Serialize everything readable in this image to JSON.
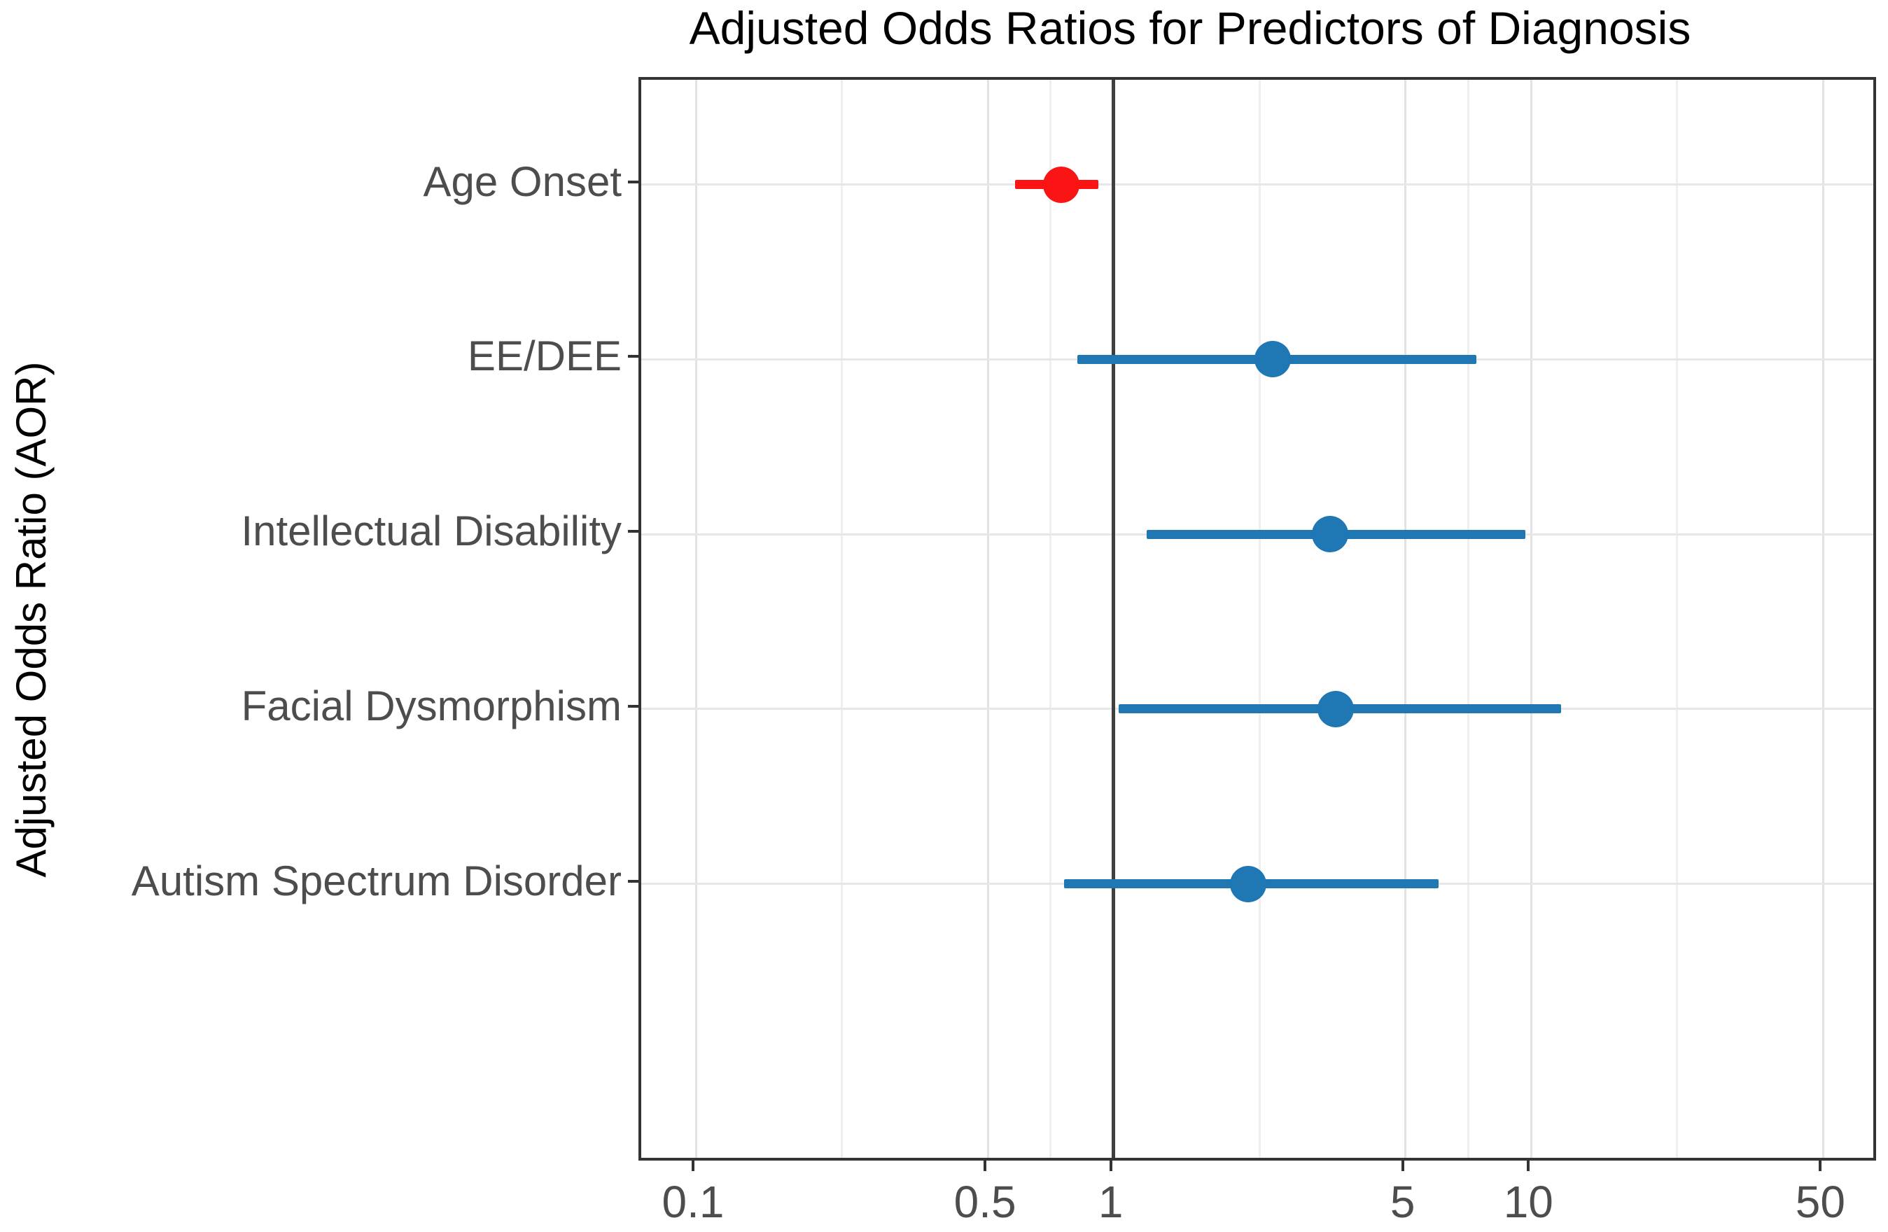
{
  "title": "Adjusted Odds Ratios for Predictors of Diagnosis",
  "y_axis_title": "Adjusted Odds Ratio (AOR)",
  "chart_data": {
    "type": "scatter",
    "subtype": "forest-plot",
    "orientation": "horizontal",
    "title": "Adjusted Odds Ratios for Predictors of Diagnosis",
    "ylabel": "Adjusted Odds Ratio (AOR)",
    "xlabel": "",
    "x_scale": "log10",
    "xlim": [
      0.074,
      68
    ],
    "x_ticks": [
      0.1,
      0.5,
      1,
      5,
      10,
      50
    ],
    "x_tick_labels": [
      "0.1",
      "0.5",
      "1",
      "5",
      "10",
      "50"
    ],
    "reference_line": 1,
    "grid": true,
    "legend_position": "none",
    "categories": [
      "Age Onset",
      "EE/DEE",
      "Intellectual Disability",
      "Facial Dysmorphism",
      "Autism Spectrum Disorder"
    ],
    "rows": [
      {
        "label": "Age Onset",
        "aor": 0.75,
        "ci_low": 0.58,
        "ci_high": 0.92,
        "color": "#FA1414"
      },
      {
        "label": "EE/DEE",
        "aor": 2.4,
        "ci_low": 0.82,
        "ci_high": 7.4,
        "color": "#1F77B4"
      },
      {
        "label": "Intellectual Disability",
        "aor": 3.3,
        "ci_low": 1.2,
        "ci_high": 9.7,
        "color": "#1F77B4"
      },
      {
        "label": "Facial Dysmorphism",
        "aor": 3.4,
        "ci_low": 1.03,
        "ci_high": 11.8,
        "color": "#1F77B4"
      },
      {
        "label": "Autism Spectrum Disorder",
        "aor": 2.1,
        "ci_low": 0.76,
        "ci_high": 6.0,
        "color": "#1F77B4"
      }
    ],
    "colors": {
      "negative_effect": "#FA1414",
      "positive_effect": "#1F77B4",
      "reference_line": "#3F3F3F",
      "gridline": "#E2E2E2"
    }
  }
}
